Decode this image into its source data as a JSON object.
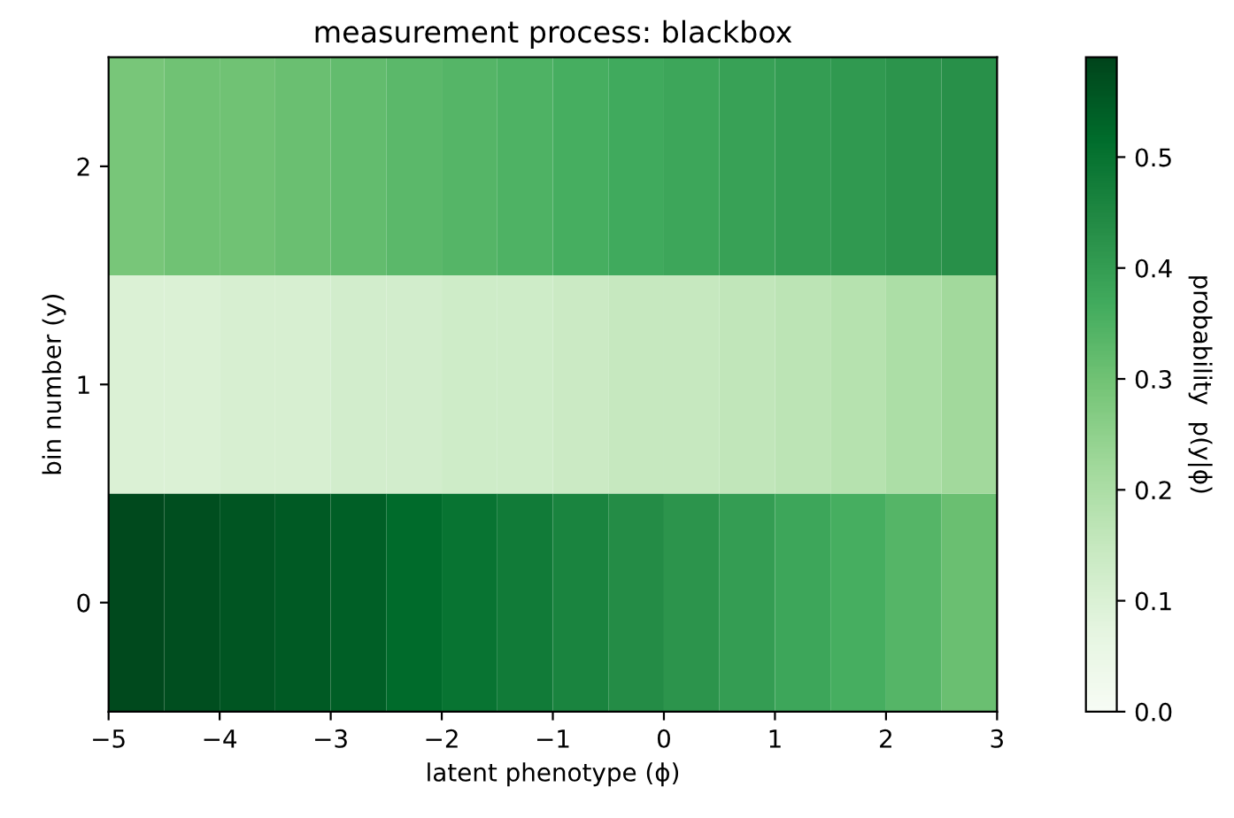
{
  "chart_data": {
    "type": "heatmap",
    "title": "measurement process: blackbox",
    "xlabel": "latent phenotype (ϕ)",
    "ylabel": "bin number (y)",
    "clabel": "probability  p(y|ϕ)",
    "x": [
      -4.75,
      -4.25,
      -3.75,
      -3.25,
      -2.75,
      -2.25,
      -1.75,
      -1.25,
      -0.75,
      -0.25,
      0.25,
      0.75,
      1.25,
      1.75,
      2.25,
      2.75
    ],
    "xlim": [
      -5,
      3
    ],
    "xticks": [
      {
        "value": -5,
        "label": "−5"
      },
      {
        "value": -4,
        "label": "−4"
      },
      {
        "value": -3,
        "label": "−3"
      },
      {
        "value": -2,
        "label": "−2"
      },
      {
        "value": -1,
        "label": "−1"
      },
      0,
      1,
      2,
      3
    ],
    "y_categories": [
      "2",
      "1",
      "0"
    ],
    "cells": [
      [
        0.29,
        0.3,
        0.3,
        0.31,
        0.32,
        0.33,
        0.34,
        0.35,
        0.36,
        0.37,
        0.38,
        0.39,
        0.4,
        0.41,
        0.42,
        0.43
      ],
      [
        0.1,
        0.1,
        0.11,
        0.11,
        0.12,
        0.12,
        0.13,
        0.13,
        0.14,
        0.15,
        0.15,
        0.16,
        0.17,
        0.18,
        0.2,
        0.22
      ],
      [
        0.58,
        0.57,
        0.56,
        0.55,
        0.54,
        0.52,
        0.5,
        0.48,
        0.46,
        0.44,
        0.42,
        0.4,
        0.38,
        0.36,
        0.34,
        0.31
      ]
    ],
    "clim": [
      0,
      0.59
    ],
    "cticks": [
      {
        "value": 0,
        "label": "0.0"
      },
      {
        "value": 0.1,
        "label": "0.1"
      },
      {
        "value": 0.2,
        "label": "0.2"
      },
      {
        "value": 0.3,
        "label": "0.3"
      },
      {
        "value": 0.4,
        "label": "0.4"
      },
      {
        "value": 0.5,
        "label": "0.5"
      }
    ]
  }
}
